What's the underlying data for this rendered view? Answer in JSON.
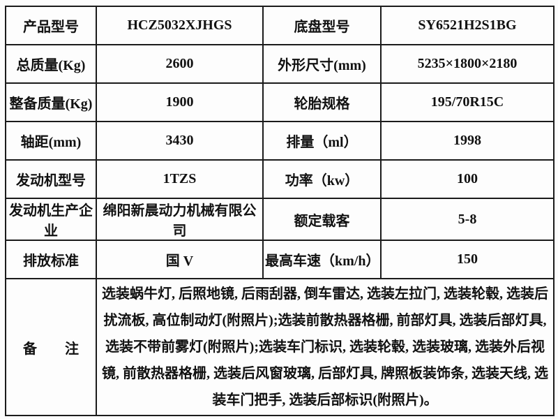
{
  "page": {
    "background_color": "#fcfcfc",
    "cell_background_color": "#fdfdfd",
    "border_color": "#1b1b1b",
    "text_color": "#111111"
  },
  "spec_table": {
    "rows": [
      {
        "c0": "产品型号",
        "c1": "HCZ5032XJHGS",
        "c2": "底盘型号",
        "c3": "SY6521H2S1BG"
      },
      {
        "c0": "总质量(Kg)",
        "c1": "2600",
        "c2": "外形尺寸(mm)",
        "c3": "5235×1800×2180"
      },
      {
        "c0": "整备质量(Kg)",
        "c1": "1900",
        "c2": "轮胎规格",
        "c3": "195/70R15C"
      },
      {
        "c0": "轴距(mm)",
        "c1": "3430",
        "c2": "排量（ml）",
        "c3": "1998"
      },
      {
        "c0": "发动机型号",
        "c1": "1TZS",
        "c2": "功率（kw）",
        "c3": "100"
      },
      {
        "c0": "发动机生产企业",
        "c1": "绵阳新晨动力机械有限公司",
        "c2": "额定载客",
        "c3": "5-8"
      },
      {
        "c0": "排放标准",
        "c1": "国 V",
        "c2": "最高车速（km/h）",
        "c3": "150"
      }
    ],
    "remark": {
      "label": "备　　注",
      "text": "选装蜗牛灯, 后照地镜, 后雨刮器, 倒车雷达, 选装左拉门, 选装轮毂, 选装后扰流板, 高位制动灯(附照片);选装前散热器格栅, 前部灯具, 选装后部灯具, 选装不带前雾灯(附照片);选装车门标识, 选装轮毂, 选装玻璃, 选装外后视镜, 前散热器格栅, 选装后风窗玻璃, 后部灯具, 牌照板装饰条, 选装天线, 选装车门把手, 选装后部标识(附照片)。"
    }
  }
}
